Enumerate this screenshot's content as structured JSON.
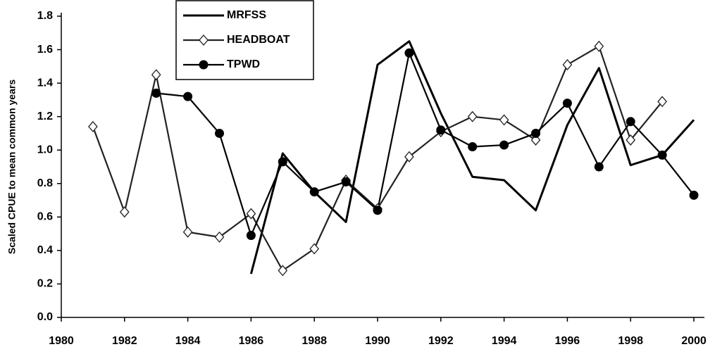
{
  "chart_data": {
    "type": "line",
    "y_label": "Scaled CPUE to mean common years",
    "x": [
      1981,
      1982,
      1983,
      1984,
      1985,
      1986,
      1987,
      1988,
      1989,
      1990,
      1991,
      1992,
      1993,
      1994,
      1995,
      1996,
      1997,
      1998,
      1999,
      2000
    ],
    "series": [
      {
        "name": "MRFSS",
        "color": "#000000",
        "marker": "none",
        "values": [
          null,
          null,
          null,
          null,
          null,
          0.26,
          0.98,
          0.75,
          0.57,
          1.51,
          1.65,
          1.22,
          0.84,
          0.82,
          0.64,
          1.15,
          1.49,
          0.91,
          0.97,
          1.18
        ]
      },
      {
        "name": "HEADBOAT",
        "color": "#222222",
        "marker": "diamond",
        "values": [
          1.14,
          0.63,
          1.45,
          0.51,
          0.48,
          0.62,
          0.28,
          0.41,
          0.82,
          0.65,
          0.96,
          1.11,
          1.2,
          1.18,
          1.06,
          1.51,
          1.62,
          1.06,
          1.29,
          null
        ]
      },
      {
        "name": "TPWD",
        "color": "#000000",
        "marker": "circle",
        "values": [
          null,
          null,
          1.34,
          1.32,
          1.1,
          0.49,
          0.93,
          0.75,
          0.81,
          0.64,
          1.58,
          1.12,
          1.02,
          1.03,
          1.1,
          1.28,
          0.9,
          1.17,
          0.97,
          0.73
        ]
      }
    ],
    "xlim": [
      1980,
      2000
    ],
    "xticks": [
      1980,
      1982,
      1984,
      1986,
      1988,
      1990,
      1992,
      1994,
      1996,
      1998,
      2000
    ],
    "ylim": [
      0,
      1.8
    ],
    "yticks": [
      {
        "value": 0,
        "label": "0.0"
      },
      0.2,
      0.4,
      0.6,
      0.8,
      {
        "value": 1,
        "label": "1.0"
      },
      1.2,
      1.4,
      1.6,
      1.8
    ],
    "grid": false,
    "legend": "upper-left"
  }
}
